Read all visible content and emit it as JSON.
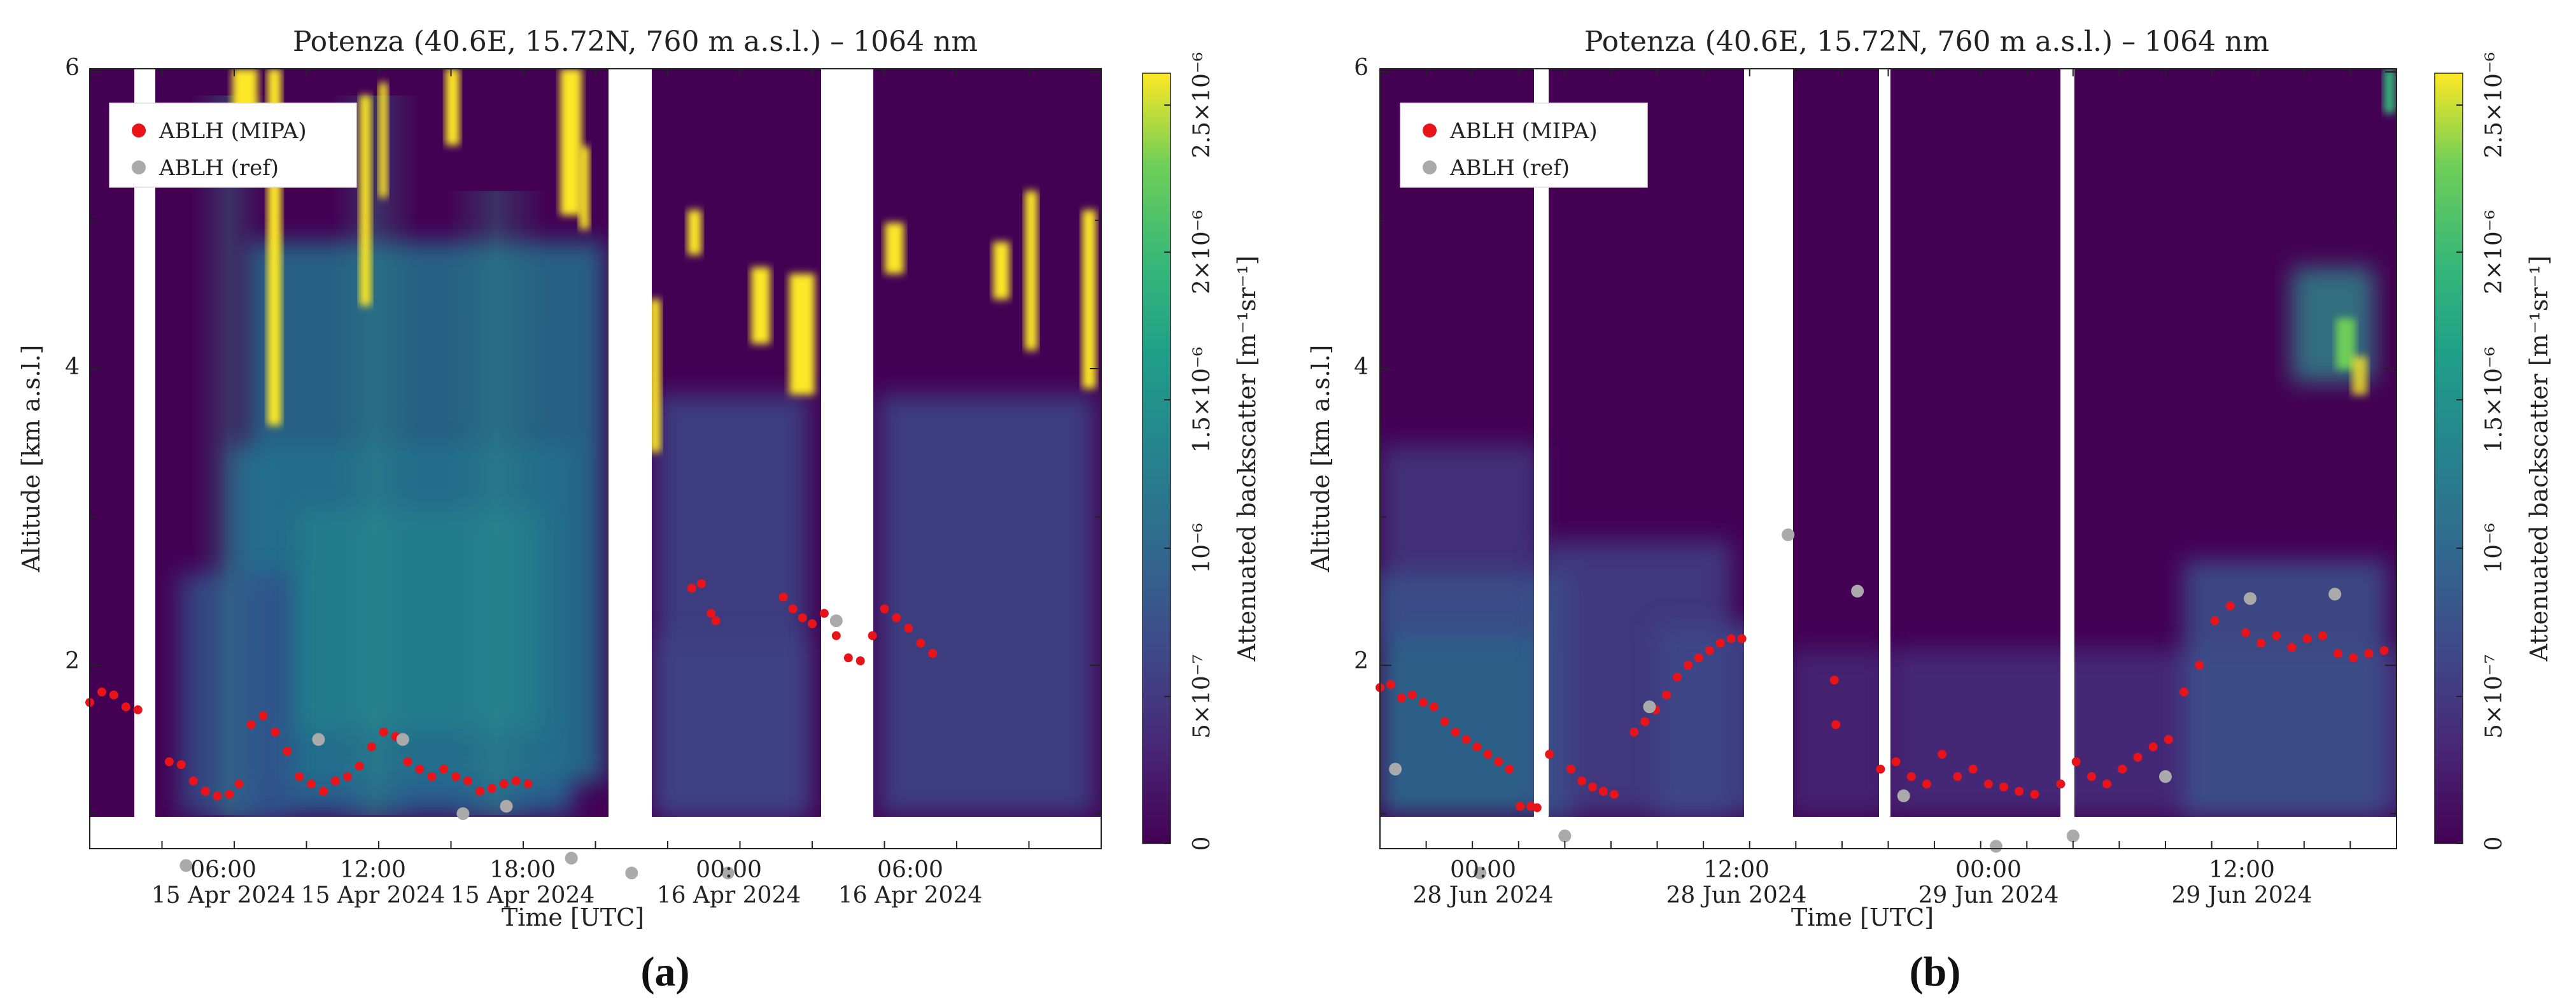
{
  "figure": {
    "panels": [
      {
        "label": "(a)",
        "title": "Potenza (40.6E, 15.72N, 760 m a.s.l.) – 1064 nm",
        "ylabel": "Altitude [km a.s.l.]",
        "xlabel": "Time [UTC]",
        "cbar_label": "Attenuated backscatter [m⁻¹sr⁻¹]",
        "cbar_ticks": [
          "0",
          "5×10⁻⁷",
          "10⁻⁶",
          "1.5×10⁻⁶",
          "2×10⁻⁶",
          "2.5×10⁻⁶"
        ],
        "y_ticks": [
          "2",
          "4",
          "6"
        ],
        "x_ticks": [
          {
            "time": "06:00",
            "date": "15 Apr 2024"
          },
          {
            "time": "12:00",
            "date": "15 Apr 2024"
          },
          {
            "time": "18:00",
            "date": "15 Apr 2024"
          },
          {
            "time": "00:00",
            "date": "16 Apr 2024"
          },
          {
            "time": "06:00",
            "date": "16 Apr 2024"
          }
        ],
        "legend": [
          {
            "label": "ABLH (MIPA)",
            "color": "#e8141a"
          },
          {
            "label": "ABLH (ref)",
            "color": "#aaaaaa"
          }
        ]
      },
      {
        "label": "(b)",
        "title": "Potenza (40.6E, 15.72N, 760 m a.s.l.) – 1064 nm",
        "ylabel": "Altitude [km a.s.l.]",
        "xlabel": "Time [UTC]",
        "cbar_label": "Attenuated backscatter [m⁻¹sr⁻¹]",
        "cbar_ticks": [
          "0",
          "5×10⁻⁷",
          "10⁻⁶",
          "1.5×10⁻⁶",
          "2×10⁻⁶",
          "2.5×10⁻⁶"
        ],
        "y_ticks": [
          "2",
          "4",
          "6"
        ],
        "x_ticks": [
          {
            "time": "00:00",
            "date": "28 Jun 2024"
          },
          {
            "time": "12:00",
            "date": "28 Jun 2024"
          },
          {
            "time": "00:00",
            "date": "29 Jun 2024"
          },
          {
            "time": "12:00",
            "date": "29 Jun 2024"
          }
        ],
        "legend": [
          {
            "label": "ABLH (MIPA)",
            "color": "#e8141a"
          },
          {
            "label": "ABLH (ref)",
            "color": "#aaaaaa"
          }
        ]
      }
    ]
  },
  "chart_data": [
    {
      "type": "heatmap",
      "title": "Potenza (40.6E, 15.72N, 760 m a.s.l.) – 1064 nm",
      "xlabel": "Time [UTC]",
      "ylabel": "Altitude [km a.s.l.]",
      "ylim": [
        0.76,
        6
      ],
      "xlim": [
        0,
        42
      ],
      "x_unit": "hours since 15 Apr 2024 00:00 UTC",
      "colormap": "viridis",
      "clim": [
        0,
        2.6e-06
      ],
      "colorbar_label": "Attenuated backscatter [m⁻¹sr⁻¹]",
      "data_gaps_hours": [
        [
          2.3,
          3.0
        ],
        [
          18.4,
          19.8
        ],
        [
          26.0,
          28.6
        ]
      ],
      "series": [
        {
          "name": "ABLH (MIPA)",
          "type": "scatter",
          "color": "#e8141a",
          "x": [
            0.0,
            0.5,
            1.0,
            1.5,
            2.0,
            3.3,
            3.8,
            4.3,
            4.8,
            5.3,
            5.8,
            6.2,
            6.7,
            7.2,
            7.7,
            8.2,
            8.7,
            9.2,
            9.7,
            10.2,
            10.7,
            11.2,
            11.7,
            12.2,
            12.7,
            13.2,
            13.7,
            14.2,
            14.7,
            15.2,
            15.7,
            16.2,
            16.7,
            17.2,
            17.7,
            18.2,
            25.0,
            25.4,
            25.8,
            26.0,
            28.8,
            29.2,
            29.6,
            30.0,
            30.5,
            31.0,
            31.5,
            32.0,
            32.5,
            33.0,
            33.5,
            34.0,
            34.5,
            35.0
          ],
          "y": [
            1.75,
            1.82,
            1.8,
            1.72,
            1.7,
            1.35,
            1.33,
            1.22,
            1.15,
            1.12,
            1.13,
            1.2,
            1.6,
            1.66,
            1.55,
            1.42,
            1.25,
            1.2,
            1.15,
            1.22,
            1.25,
            1.32,
            1.45,
            1.55,
            1.52,
            1.35,
            1.3,
            1.25,
            1.3,
            1.25,
            1.22,
            1.15,
            1.17,
            1.2,
            1.22,
            1.2,
            2.52,
            2.55,
            2.35,
            2.3,
            2.46,
            2.38,
            2.32,
            2.28,
            2.35,
            2.2,
            2.05,
            2.03,
            2.2,
            2.38,
            2.32,
            2.25,
            2.15,
            2.08
          ]
        },
        {
          "name": "ABLH (ref)",
          "type": "scatter",
          "color": "#aaaaaa",
          "x": [
            4.0,
            9.5,
            13.0,
            15.5,
            17.3,
            20.0,
            22.5,
            26.5,
            31.0
          ],
          "y": [
            0.65,
            1.5,
            1.5,
            1.0,
            1.05,
            0.7,
            0.6,
            0.6,
            2.3
          ]
        }
      ]
    },
    {
      "type": "heatmap",
      "title": "Potenza (40.6E, 15.72N, 760 m a.s.l.) – 1064 nm",
      "xlabel": "Time [UTC]",
      "ylabel": "Altitude [km a.s.l.]",
      "ylim": [
        0.76,
        6
      ],
      "xlim": [
        0,
        66
      ],
      "x_unit": "hours since 27 Jun 2024 18:00 UTC",
      "colormap": "viridis",
      "clim": [
        0,
        2.6e-06
      ],
      "colorbar_label": "Attenuated backscatter [m⁻¹sr⁻¹]",
      "data_gaps_hours": [
        [
          10.0,
          11.0
        ],
        [
          23.6,
          27.0
        ],
        [
          32.5,
          33.3
        ],
        [
          43.1,
          44.0
        ]
      ],
      "series": [
        {
          "name": "ABLH (MIPA)",
          "type": "scatter",
          "color": "#e8141a",
          "x": [
            0.0,
            0.7,
            1.4,
            2.1,
            2.8,
            3.5,
            4.2,
            4.9,
            5.6,
            6.3,
            7.0,
            7.7,
            8.4,
            9.1,
            9.8,
            10.2,
            11.0,
            12.4,
            13.1,
            13.8,
            14.5,
            15.2,
            16.5,
            17.2,
            17.9,
            18.6,
            19.3,
            20.0,
            20.7,
            21.4,
            22.1,
            22.8,
            23.5,
            29.5,
            29.6,
            32.5,
            33.5,
            34.5,
            35.5,
            36.5,
            37.5,
            38.5,
            39.5,
            40.5,
            41.5,
            42.5,
            44.2,
            45.2,
            46.2,
            47.2,
            48.2,
            49.2,
            50.2,
            51.2,
            52.2,
            53.2,
            54.2,
            55.2,
            56.2,
            57.2,
            58.2,
            59.2,
            60.2,
            61.2,
            62.2,
            63.2,
            64.2,
            65.2
          ],
          "y": [
            1.85,
            1.87,
            1.78,
            1.8,
            1.75,
            1.72,
            1.62,
            1.55,
            1.5,
            1.45,
            1.4,
            1.35,
            1.3,
            1.05,
            1.05,
            1.04,
            1.4,
            1.3,
            1.22,
            1.18,
            1.15,
            1.13,
            1.55,
            1.62,
            1.7,
            1.8,
            1.92,
            2.0,
            2.05,
            2.1,
            2.15,
            2.18,
            2.18,
            1.9,
            1.6,
            1.3,
            1.35,
            1.25,
            1.2,
            1.4,
            1.25,
            1.3,
            1.2,
            1.18,
            1.15,
            1.13,
            1.2,
            1.35,
            1.25,
            1.2,
            1.3,
            1.38,
            1.45,
            1.5,
            1.82,
            2.0,
            2.3,
            2.4,
            2.22,
            2.15,
            2.2,
            2.12,
            2.18,
            2.2,
            2.08,
            2.05,
            2.08,
            2.1
          ],
          "note_x": "hours since 27 Jun 2024 18:00 UTC"
        },
        {
          "name": "ABLH (ref)",
          "type": "scatter",
          "color": "#aaaaaa",
          "x": [
            1.0,
            6.5,
            12.0,
            17.5,
            26.5,
            31.0,
            34.0,
            40.0,
            45.0,
            51.0,
            56.5,
            62.0
          ],
          "y": [
            1.3,
            0.6,
            0.85,
            1.72,
            2.88,
            2.5,
            1.12,
            0.78,
            0.85,
            1.25,
            2.45,
            2.48
          ]
        }
      ]
    }
  ]
}
